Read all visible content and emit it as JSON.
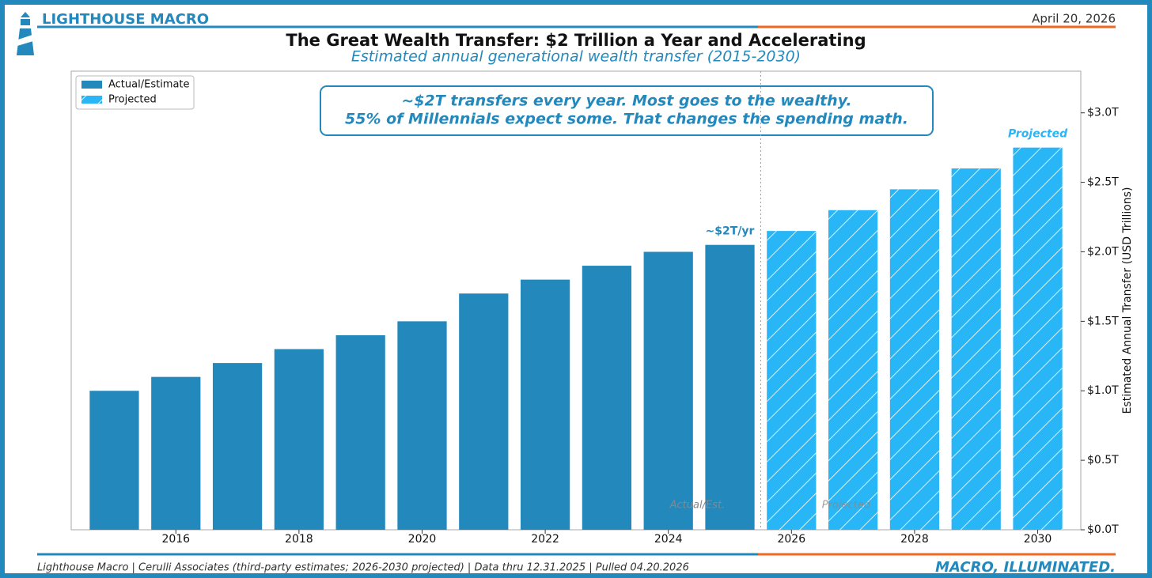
{
  "brand": "LIGHTHOUSE MACRO",
  "date": "April 20, 2026",
  "tagline": "MACRO, ILLUMINATED.",
  "source": "Lighthouse Macro | Cerulli Associates (third-party estimates; 2026-2030 projected) | Data thru 12.31.2025 | Pulled 04.20.2026",
  "chart_data": {
    "type": "bar",
    "title": "The Great Wealth Transfer: $2 Trillion a Year and Accelerating",
    "subtitle": "Estimated annual generational wealth transfer (2015-2030)",
    "y_label": "Estimated Annual Transfer (USD Trillions)",
    "callout": [
      "~$2T transfers every year. Most goes to the wealthy.",
      "55% of Millennials expect some. That changes the spending math."
    ],
    "annotations": {
      "actual_peak": "~$2T/yr",
      "projected_peak": "Projected",
      "actual_region": "Actual/Est.",
      "projected_region": "Projected"
    },
    "x": [
      2015,
      2016,
      2017,
      2018,
      2019,
      2020,
      2021,
      2022,
      2023,
      2024,
      2025,
      2026,
      2027,
      2028,
      2029,
      2030
    ],
    "xlim": [
      2014.3,
      2030.7
    ],
    "xticks": [
      2016,
      2018,
      2020,
      2022,
      2024,
      2026,
      2028,
      2030
    ],
    "ylim": [
      0,
      3.3
    ],
    "yticks": [
      {
        "value": 0,
        "label": "$0.0T"
      },
      {
        "value": 0.5,
        "label": "$0.5T"
      },
      {
        "value": 1,
        "label": "$1.0T"
      },
      {
        "value": 1.5,
        "label": "$1.5T"
      },
      {
        "value": 2,
        "label": "$2.0T"
      },
      {
        "value": 2.5,
        "label": "$2.5T"
      },
      {
        "value": 3,
        "label": "$3.0T"
      }
    ],
    "legend": "upper left",
    "series": [
      {
        "name": "Actual/Estimate",
        "color": "#2389bd",
        "hatch": false,
        "values": [
          1.0,
          1.1,
          1.2,
          1.3,
          1.4,
          1.5,
          1.7,
          1.8,
          1.9,
          2.0,
          2.05,
          null,
          null,
          null,
          null,
          null
        ]
      },
      {
        "name": "Projected",
        "color": "#29b6f6",
        "hatch": true,
        "values": [
          null,
          null,
          null,
          null,
          null,
          null,
          null,
          null,
          null,
          null,
          null,
          2.15,
          2.3,
          2.45,
          2.6,
          2.75
        ]
      }
    ]
  }
}
